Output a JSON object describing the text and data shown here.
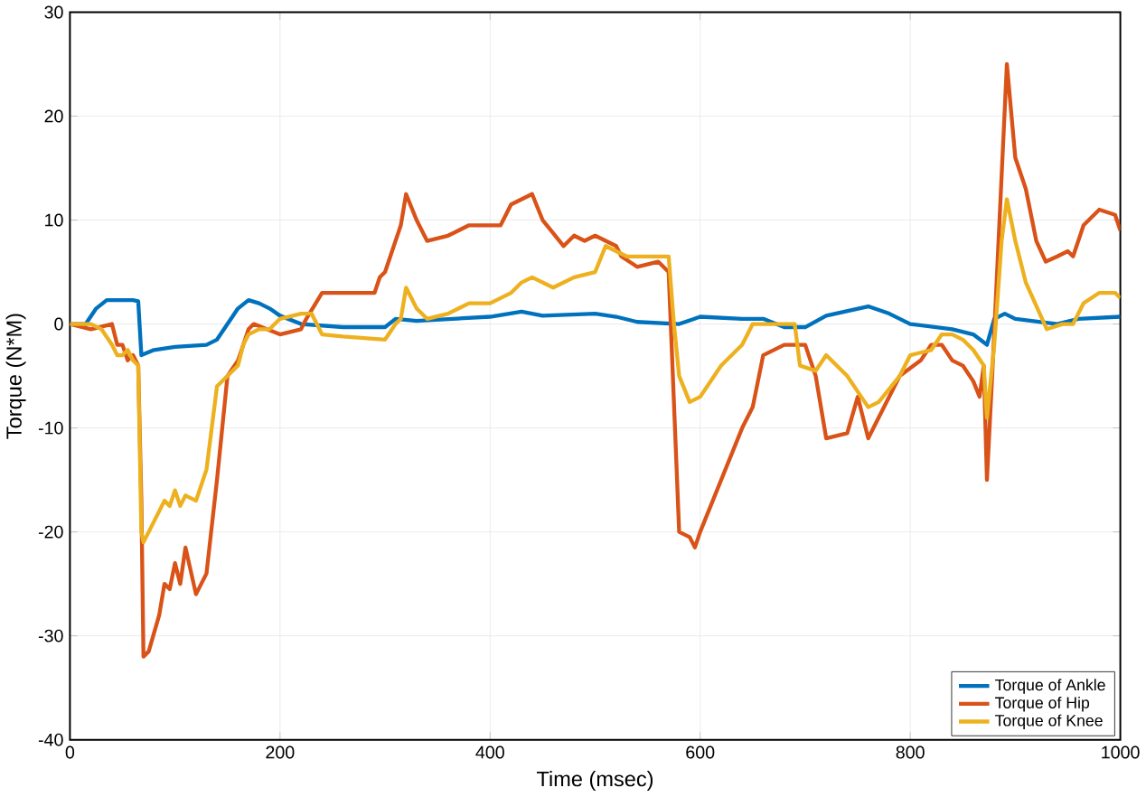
{
  "chart_data": {
    "type": "line",
    "xlabel": "Time (msec)",
    "ylabel": "Torque (N*M)",
    "xlim": [
      0,
      1000
    ],
    "xticks": [
      0,
      200,
      400,
      600,
      800,
      1000
    ],
    "ylim": [
      -40,
      30
    ],
    "yticks": [
      -40,
      -30,
      -20,
      -10,
      0,
      10,
      20,
      30
    ],
    "grid": true,
    "legend": "bottom right",
    "series": [
      {
        "name": "Torque of Ankle",
        "color": "#0072bd",
        "x": [
          0,
          15,
          25,
          35,
          60,
          65,
          68,
          80,
          100,
          130,
          140,
          150,
          160,
          170,
          180,
          190,
          200,
          220,
          260,
          300,
          310,
          330,
          400,
          430,
          450,
          500,
          520,
          540,
          580,
          600,
          640,
          660,
          680,
          700,
          720,
          760,
          780,
          800,
          840,
          860,
          873,
          880,
          890,
          900,
          940,
          960,
          1000
        ],
        "values": [
          0,
          0,
          1.5,
          2.3,
          2.3,
          2.2,
          -3,
          -2.5,
          -2.2,
          -2,
          -1.5,
          0,
          1.5,
          2.3,
          2,
          1.5,
          0.8,
          0,
          -0.3,
          -0.3,
          0.5,
          0.3,
          0.7,
          1.2,
          0.8,
          1,
          0.7,
          0.2,
          0,
          0.7,
          0.5,
          0.5,
          -0.3,
          -0.3,
          0.8,
          1.7,
          1,
          0,
          -0.5,
          -1,
          -2,
          0.5,
          1,
          0.5,
          0,
          0.5,
          0.7
        ]
      },
      {
        "name": "Torque of Hip",
        "color": "#d95319",
        "x": [
          0,
          20,
          40,
          45,
          50,
          55,
          60,
          65,
          68,
          70,
          75,
          85,
          90,
          95,
          100,
          105,
          110,
          120,
          130,
          140,
          150,
          160,
          170,
          175,
          200,
          220,
          225,
          240,
          290,
          295,
          300,
          310,
          315,
          320,
          330,
          340,
          360,
          380,
          410,
          420,
          440,
          450,
          470,
          480,
          490,
          500,
          520,
          525,
          540,
          560,
          570,
          580,
          590,
          595,
          600,
          620,
          640,
          650,
          660,
          680,
          700,
          710,
          720,
          740,
          750,
          760,
          770,
          790,
          810,
          820,
          830,
          840,
          850,
          860,
          866,
          870,
          873,
          878,
          885,
          892,
          900,
          910,
          920,
          929,
          940,
          950,
          955,
          965,
          980,
          995,
          1000
        ],
        "values": [
          0,
          -0.5,
          0,
          -2,
          -2,
          -3.5,
          -3,
          -4,
          -17,
          -32,
          -31.5,
          -28,
          -25,
          -25.5,
          -23,
          -25,
          -21.5,
          -26,
          -24,
          -15,
          -5,
          -3.5,
          -0.5,
          0,
          -1,
          -0.5,
          0.5,
          3,
          3,
          4.5,
          5,
          8,
          9.5,
          12.5,
          10,
          8,
          8.5,
          9.5,
          9.5,
          11.5,
          12.5,
          10,
          7.5,
          8.5,
          8,
          8.5,
          7.5,
          6.5,
          5.5,
          6,
          5,
          -20,
          -20.5,
          -21.5,
          -20,
          -15,
          -10,
          -8,
          -3,
          -2,
          -2,
          -5,
          -11,
          -10.5,
          -7,
          -11,
          -9,
          -5,
          -3.5,
          -2,
          -2,
          -3.5,
          -4,
          -5.5,
          -7,
          -4,
          -15,
          -5,
          10,
          25,
          16,
          13,
          8,
          6,
          6.5,
          7,
          6.5,
          9.5,
          11,
          10.5,
          9
        ]
      },
      {
        "name": "Torque of Knee",
        "color": "#edb120",
        "x": [
          0,
          20,
          30,
          40,
          45,
          50,
          55,
          60,
          65,
          68,
          70,
          80,
          90,
          95,
          100,
          105,
          110,
          120,
          130,
          140,
          150,
          160,
          165,
          170,
          180,
          190,
          200,
          220,
          230,
          240,
          260,
          300,
          310,
          315,
          320,
          330,
          340,
          360,
          380,
          400,
          410,
          420,
          430,
          440,
          450,
          460,
          480,
          500,
          510,
          520,
          530,
          550,
          570,
          575,
          580,
          590,
          600,
          620,
          640,
          650,
          660,
          680,
          690,
          695,
          710,
          720,
          730,
          740,
          750,
          760,
          770,
          790,
          800,
          820,
          830,
          840,
          850,
          860,
          870,
          873,
          880,
          887,
          892,
          900,
          910,
          930,
          945,
          955,
          965,
          980,
          995,
          1000
        ],
        "values": [
          0,
          0,
          -0.5,
          -2,
          -3,
          -3,
          -2.5,
          -3.5,
          -4,
          -20,
          -21,
          -19,
          -17,
          -17.5,
          -16,
          -17.5,
          -16.5,
          -17,
          -14,
          -6,
          -5,
          -4,
          -2,
          -1,
          -0.5,
          -0.5,
          0.5,
          1,
          1,
          -1,
          -1.2,
          -1.5,
          0,
          0.5,
          3.5,
          1.5,
          0.5,
          1,
          2,
          2,
          2.5,
          3,
          4,
          4.5,
          4,
          3.5,
          4.5,
          5,
          7.5,
          7,
          6.5,
          6.5,
          6.5,
          0,
          -5,
          -7.5,
          -7,
          -4,
          -2,
          0,
          0,
          0,
          0,
          -4,
          -4.5,
          -3,
          -4,
          -5,
          -6.5,
          -8,
          -7.5,
          -5,
          -3,
          -2.5,
          -1,
          -1,
          -1.5,
          -2.5,
          -4,
          -9,
          -2,
          8,
          12,
          8,
          4,
          -0.5,
          0,
          0,
          2,
          3,
          3,
          2.5
        ]
      }
    ]
  }
}
